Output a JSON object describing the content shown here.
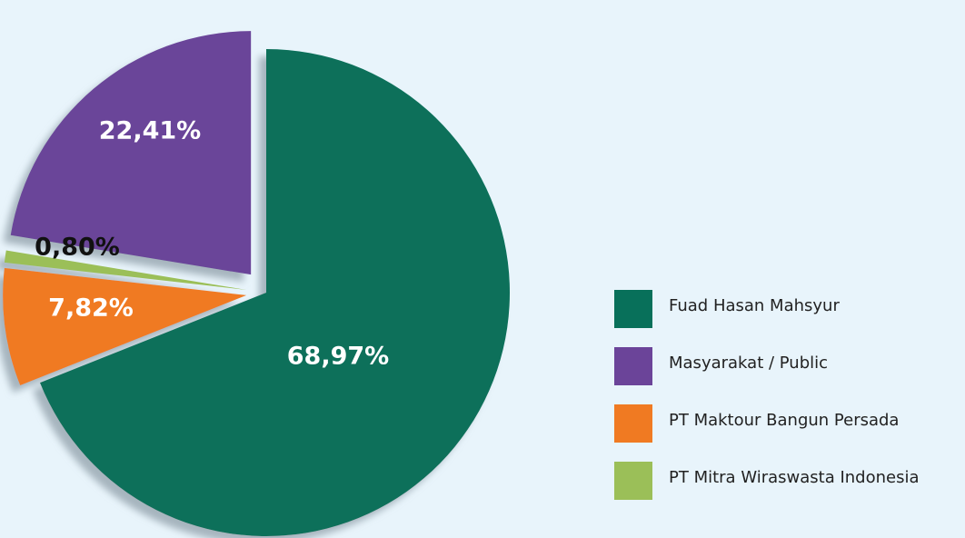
{
  "chart_data": {
    "type": "pie",
    "series": [
      {
        "name": "Fuad Hasan Mahsyur",
        "color": "#08705a",
        "values": [
          68.97
        ],
        "value_labels": [
          "68,97%"
        ]
      },
      {
        "name": "Masyarakat / Public",
        "color": "#6b4499",
        "values": [
          22.41
        ],
        "value_labels": [
          "22,41%"
        ]
      },
      {
        "name": "PT Maktour Bangun Persada",
        "color": "#f07a22",
        "values": [
          7.82
        ],
        "value_labels": [
          "7,82%"
        ]
      },
      {
        "name": "PT Mitra Wiraswasta Indonesia",
        "color": "#9bbf58",
        "values": [
          0.8
        ],
        "value_labels": [
          "0,80%"
        ]
      }
    ]
  }
}
